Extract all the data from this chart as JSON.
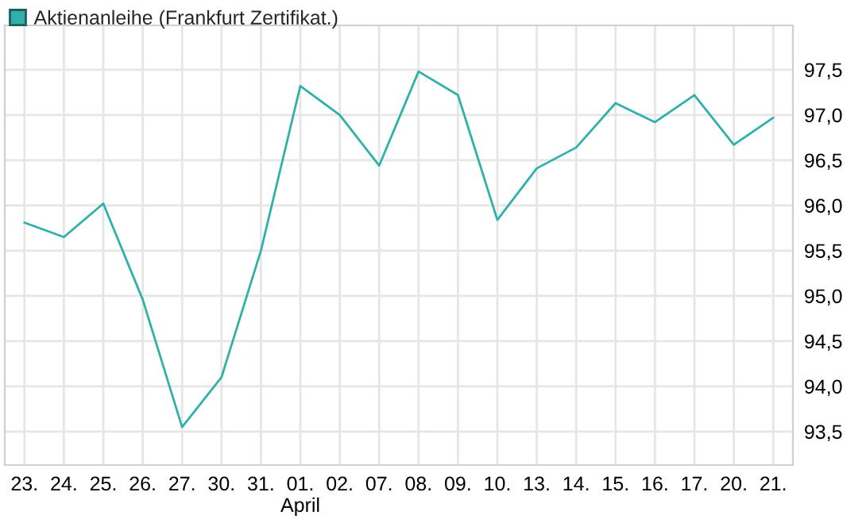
{
  "chart_data": {
    "type": "line",
    "categories": [
      "23.",
      "24.",
      "25.",
      "26.",
      "27.",
      "30.",
      "31.",
      "01.\nApril",
      "02.",
      "07.",
      "08.",
      "09.",
      "10.",
      "13.",
      "14.",
      "15.",
      "16.",
      "17.",
      "20.",
      "21."
    ],
    "series": [
      {
        "name": "Aktienanleihe (Frankfurt Zertifikat.)",
        "color": "#2fb0aa",
        "values": [
          95.81,
          95.65,
          96.02,
          94.96,
          93.55,
          94.1,
          95.5,
          97.32,
          97.0,
          96.44,
          97.48,
          97.22,
          95.84,
          96.41,
          96.64,
          97.13,
          96.92,
          97.22,
          96.67,
          96.97
        ]
      }
    ],
    "ylim": [
      93.13,
      97.99
    ],
    "yticks": [
      {
        "value": 93.5,
        "label": "93,5"
      },
      {
        "value": 94.0,
        "label": "94,0"
      },
      {
        "value": 94.5,
        "label": "94,5"
      },
      {
        "value": 95.0,
        "label": "95,0"
      },
      {
        "value": 95.5,
        "label": "95,5"
      },
      {
        "value": 96.0,
        "label": "96,0"
      },
      {
        "value": 96.5,
        "label": "96,5"
      },
      {
        "value": 97.0,
        "label": "97,0"
      },
      {
        "value": 97.5,
        "label": "97,5"
      }
    ],
    "grid": true,
    "legend": "top left",
    "marker": "none",
    "line_style": "solid"
  }
}
